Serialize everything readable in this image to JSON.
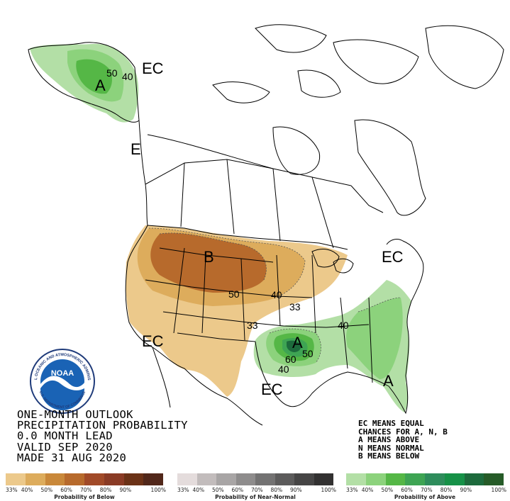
{
  "title_lines": [
    "ONE-MONTH OUTLOOK",
    "PRECIPITATION PROBABILITY",
    "0.0 MONTH LEAD",
    "VALID SEP 2020",
    "MADE 31 AUG 2020"
  ],
  "legend_lines": [
    "EC MEANS EQUAL",
    "CHANCES FOR A, N, B",
    "A MEANS ABOVE",
    "N MEANS NORMAL",
    "B MEANS BELOW"
  ],
  "map_labels": {
    "ec_alaska": "EC",
    "ec_pacific": "E",
    "ec_east": "EC",
    "ec_southwest": "EC",
    "ec_south": "EC",
    "b_north": "B",
    "a_alaska": "A",
    "a_south": "A",
    "c50_alaska": "50",
    "c40_alaska": "40",
    "c50_plains": "50",
    "c40_plains": "40",
    "c33_midwest": "33",
    "c33_south": "33",
    "c40_southeast": "40",
    "c50_south": "50",
    "c60_south": "60",
    "c40_south": "40"
  },
  "noaa_logo": {
    "text": "NOAA",
    "ring_text": "NATIONAL OCEANIC AND ATMOSPHERIC ADMINISTRATION",
    "ring_text_bottom": "U.S. DEPARTMENT OF COMMERCE"
  },
  "colors": {
    "below": [
      "#ecc98b",
      "#ddac5c",
      "#c9883a",
      "#b76a2c",
      "#a14a28",
      "#8a3b25",
      "#6b3217",
      "#51271a"
    ],
    "near_normal": [
      "#e4dcdc",
      "#c2bcbc",
      "#a8a5a5",
      "#8e8c8c",
      "#737272",
      "#5c5b5b",
      "#464545",
      "#323131"
    ],
    "above": [
      "#b3dfa6",
      "#8cd27c",
      "#55b746",
      "#3ea453",
      "#2e8c5b",
      "#169147",
      "#1d6a3c",
      "#265b28"
    ]
  },
  "scales": [
    {
      "key": "below",
      "label": "Probability of Below",
      "ticks": [
        "33%",
        "40%",
        "50%",
        "60%",
        "70%",
        "80%",
        "90%",
        "100%"
      ]
    },
    {
      "key": "near_normal",
      "label": "Probability of Near-Normal",
      "ticks": [
        "33%",
        "40%",
        "50%",
        "60%",
        "70%",
        "80%",
        "90%",
        "100%"
      ]
    },
    {
      "key": "above",
      "label": "Probability of Above",
      "ticks": [
        "33%",
        "40%",
        "50%",
        "60%",
        "70%",
        "80%",
        "90%",
        "100%"
      ]
    }
  ]
}
